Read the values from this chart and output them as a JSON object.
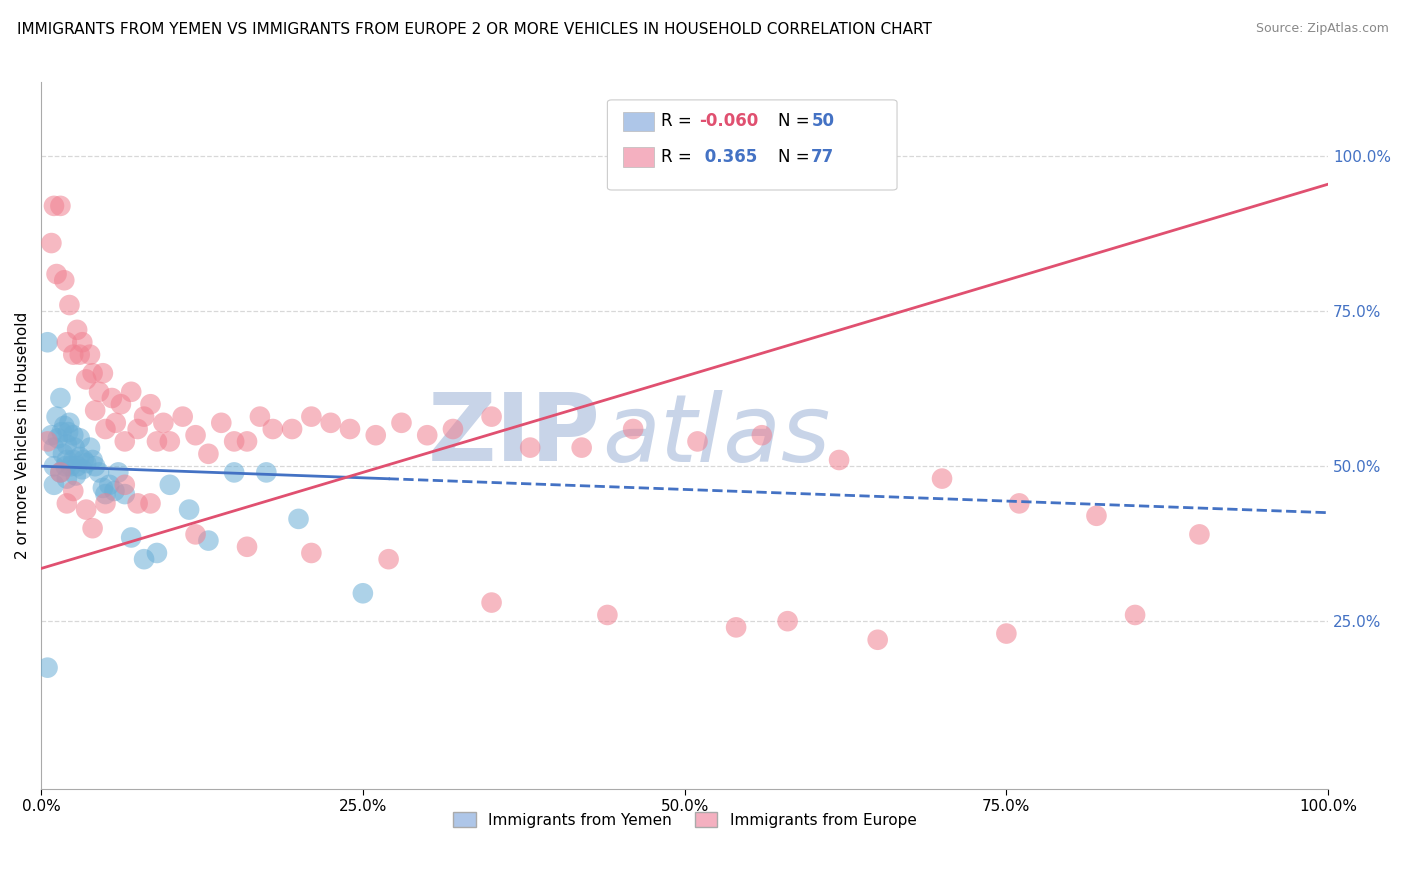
{
  "title": "IMMIGRANTS FROM YEMEN VS IMMIGRANTS FROM EUROPE 2 OR MORE VEHICLES IN HOUSEHOLD CORRELATION CHART",
  "source": "Source: ZipAtlas.com",
  "ylabel": "2 or more Vehicles in Household",
  "right_ytick_labels": [
    "25.0%",
    "50.0%",
    "75.0%",
    "100.0%"
  ],
  "right_ytick_values": [
    0.25,
    0.5,
    0.75,
    1.0
  ],
  "xlim": [
    0.0,
    1.0
  ],
  "ylim": [
    -0.02,
    1.12
  ],
  "xtick_labels": [
    "0.0%",
    "25.0%",
    "50.0%",
    "75.0%",
    "100.0%"
  ],
  "xtick_values": [
    0.0,
    0.25,
    0.5,
    0.75,
    1.0
  ],
  "yemen_color": "#6aaed6",
  "europe_color": "#f08090",
  "bg_color": "#ffffff",
  "grid_color": "#d8d8d8",
  "watermark_zip": "ZIP",
  "watermark_atlas": "atlas",
  "watermark_color": "#c8d4e8",
  "yemen_line_color": "#4472c4",
  "europe_line_color": "#e05070",
  "yemen_line_y0": 0.5,
  "yemen_line_y1": 0.425,
  "europe_line_y0": 0.335,
  "europe_line_y1": 0.955,
  "yemen_scatter_x": [
    0.005,
    0.008,
    0.01,
    0.01,
    0.01,
    0.012,
    0.013,
    0.015,
    0.015,
    0.016,
    0.017,
    0.018,
    0.019,
    0.02,
    0.02,
    0.02,
    0.021,
    0.022,
    0.023,
    0.025,
    0.025,
    0.026,
    0.027,
    0.028,
    0.03,
    0.03,
    0.032,
    0.033,
    0.035,
    0.038,
    0.04,
    0.042,
    0.045,
    0.048,
    0.05,
    0.053,
    0.057,
    0.06,
    0.065,
    0.07,
    0.08,
    0.09,
    0.1,
    0.115,
    0.13,
    0.15,
    0.175,
    0.2,
    0.25,
    0.005
  ],
  "yemen_scatter_y": [
    0.175,
    0.55,
    0.53,
    0.5,
    0.47,
    0.58,
    0.545,
    0.61,
    0.49,
    0.555,
    0.52,
    0.565,
    0.5,
    0.535,
    0.51,
    0.48,
    0.555,
    0.57,
    0.5,
    0.55,
    0.51,
    0.53,
    0.485,
    0.5,
    0.545,
    0.515,
    0.495,
    0.51,
    0.505,
    0.53,
    0.51,
    0.5,
    0.49,
    0.465,
    0.455,
    0.47,
    0.46,
    0.49,
    0.455,
    0.385,
    0.35,
    0.36,
    0.47,
    0.43,
    0.38,
    0.49,
    0.49,
    0.415,
    0.295,
    0.7
  ],
  "europe_scatter_x": [
    0.005,
    0.008,
    0.01,
    0.012,
    0.015,
    0.018,
    0.02,
    0.022,
    0.025,
    0.028,
    0.03,
    0.032,
    0.035,
    0.038,
    0.04,
    0.042,
    0.045,
    0.048,
    0.05,
    0.055,
    0.058,
    0.062,
    0.065,
    0.07,
    0.075,
    0.08,
    0.085,
    0.09,
    0.095,
    0.1,
    0.11,
    0.12,
    0.13,
    0.14,
    0.15,
    0.16,
    0.17,
    0.18,
    0.195,
    0.21,
    0.225,
    0.24,
    0.26,
    0.28,
    0.3,
    0.32,
    0.35,
    0.38,
    0.42,
    0.46,
    0.51,
    0.56,
    0.62,
    0.7,
    0.76,
    0.82,
    0.9,
    0.015,
    0.025,
    0.035,
    0.05,
    0.065,
    0.085,
    0.12,
    0.16,
    0.21,
    0.27,
    0.35,
    0.44,
    0.54,
    0.65,
    0.75,
    0.85,
    0.02,
    0.04,
    0.075,
    0.58
  ],
  "europe_scatter_y": [
    0.54,
    0.86,
    0.92,
    0.81,
    0.92,
    0.8,
    0.7,
    0.76,
    0.68,
    0.72,
    0.68,
    0.7,
    0.64,
    0.68,
    0.65,
    0.59,
    0.62,
    0.65,
    0.56,
    0.61,
    0.57,
    0.6,
    0.54,
    0.62,
    0.56,
    0.58,
    0.6,
    0.54,
    0.57,
    0.54,
    0.58,
    0.55,
    0.52,
    0.57,
    0.54,
    0.54,
    0.58,
    0.56,
    0.56,
    0.58,
    0.57,
    0.56,
    0.55,
    0.57,
    0.55,
    0.56,
    0.58,
    0.53,
    0.53,
    0.56,
    0.54,
    0.55,
    0.51,
    0.48,
    0.44,
    0.42,
    0.39,
    0.49,
    0.46,
    0.43,
    0.44,
    0.47,
    0.44,
    0.39,
    0.37,
    0.36,
    0.35,
    0.28,
    0.26,
    0.24,
    0.22,
    0.23,
    0.26,
    0.44,
    0.4,
    0.44,
    0.25
  ]
}
